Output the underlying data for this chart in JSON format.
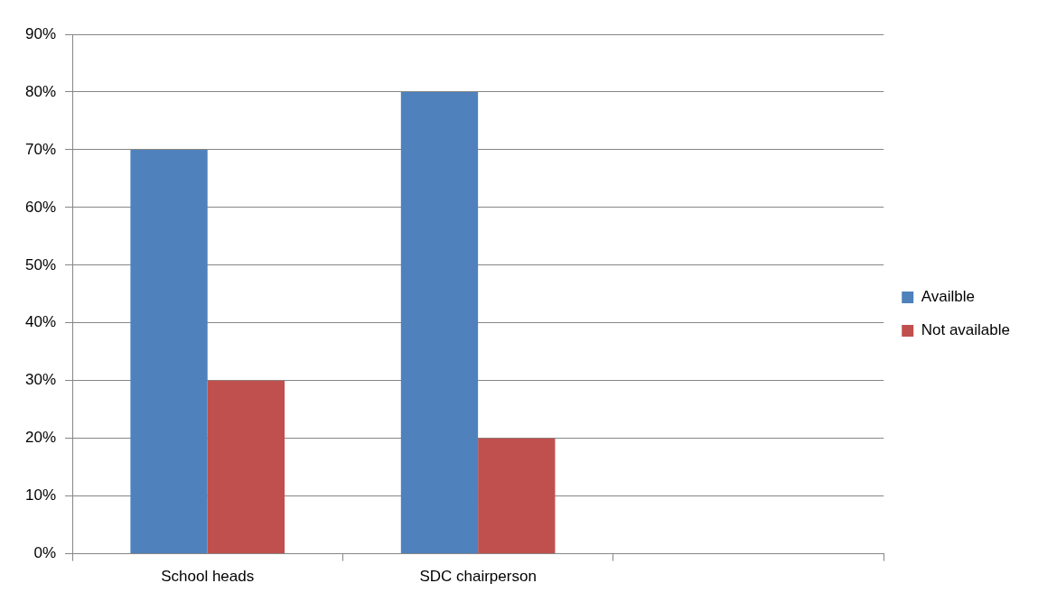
{
  "chart_data": {
    "type": "bar",
    "categories": [
      "School heads",
      "SDC chairperson",
      null
    ],
    "series": [
      {
        "name": "Availble",
        "color": "#4f81bd",
        "values": [
          70,
          80,
          null
        ]
      },
      {
        "name": "Not available",
        "color": "#c0504d",
        "values": [
          30,
          20,
          null
        ]
      }
    ],
    "ylim": [
      0,
      90
    ],
    "yticks": [
      {
        "value": 0,
        "label": "0%"
      },
      {
        "value": 10,
        "label": "10%"
      },
      {
        "value": 20,
        "label": "20%"
      },
      {
        "value": 30,
        "label": "30%"
      },
      {
        "value": 40,
        "label": "40%"
      },
      {
        "value": 50,
        "label": "50%"
      },
      {
        "value": 60,
        "label": "60%"
      },
      {
        "value": 70,
        "label": "70%"
      },
      {
        "value": 80,
        "label": "80%"
      },
      {
        "value": 90,
        "label": "90%"
      }
    ],
    "grid": "y",
    "legend": "right"
  }
}
